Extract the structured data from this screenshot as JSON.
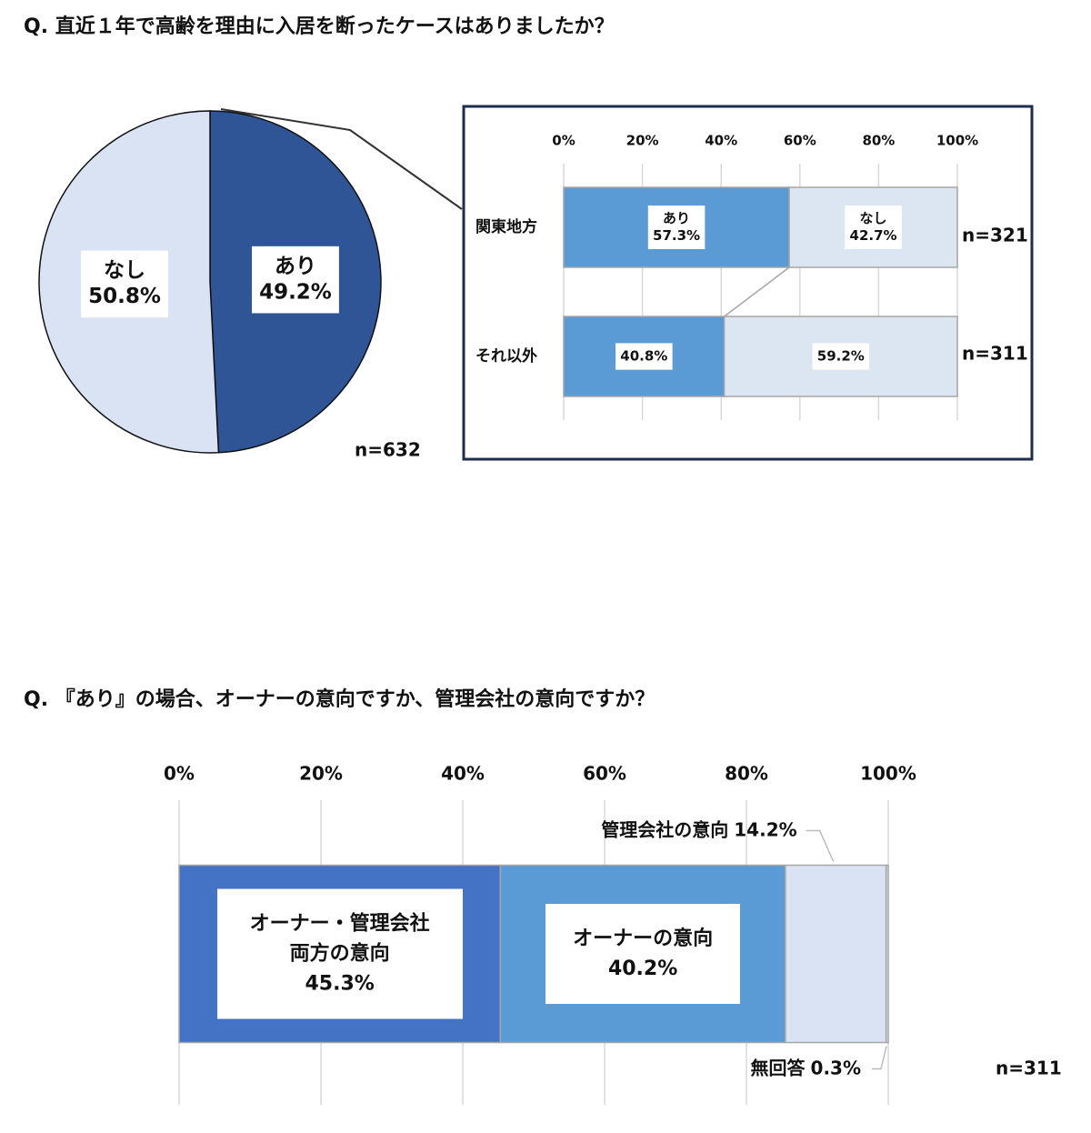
{
  "chart_data": [
    {
      "type": "pie",
      "title": "Q. 直近１年で高齢を理由に入居を断ったケースはありましたか？",
      "categories": [
        "あり",
        "なし"
      ],
      "values": [
        49.2,
        50.8
      ],
      "value_labels": [
        "49.2%",
        "50.8%"
      ],
      "colors": [
        "#2f5597",
        "#dae3f3"
      ],
      "annotation": "n=632"
    },
    {
      "type": "bar",
      "orientation": "horizontal",
      "stacked": true,
      "categories": [
        "関東地方",
        "それ以外"
      ],
      "series": [
        {
          "name": "あり",
          "color": "#5b9bd5",
          "values": [
            57.3,
            40.8
          ],
          "value_labels": [
            "57.3%",
            "40.8%"
          ]
        },
        {
          "name": "なし",
          "color": "#dce6f2",
          "values": [
            42.7,
            59.2
          ],
          "value_labels": [
            "42.7%",
            "59.2%"
          ]
        }
      ],
      "xlim": [
        0,
        100
      ],
      "xticks": [
        {
          "value": 0,
          "label": "0%"
        },
        {
          "value": 20,
          "label": "20%"
        },
        {
          "value": 40,
          "label": "40%"
        },
        {
          "value": 60,
          "label": "60%"
        },
        {
          "value": 80,
          "label": "80%"
        },
        {
          "value": 100,
          "label": "100%"
        }
      ],
      "grid": true,
      "annotations": [
        "n=321",
        "n=311"
      ]
    },
    {
      "type": "bar",
      "orientation": "horizontal",
      "stacked": true,
      "title": "Q. 『あり』の場合、オーナーの意向ですか、管理会社の意向ですか？",
      "categories": [
        null
      ],
      "series": [
        {
          "name": "オーナー・管理会社両方の意向",
          "color": "#4472c4",
          "values": [
            45.3
          ],
          "value_labels": [
            "45.3%"
          ]
        },
        {
          "name": "オーナーの意向",
          "color": "#5b9bd5",
          "values": [
            40.2
          ],
          "value_labels": [
            "40.2%"
          ]
        },
        {
          "name": "管理会社の意向",
          "color": "#dae3f3",
          "values": [
            14.2
          ],
          "value_labels": [
            "14.2%"
          ]
        },
        {
          "name": "無回答",
          "color": "#dae3f3",
          "values": [
            0.3
          ],
          "value_labels": [
            "0.3%"
          ]
        }
      ],
      "xlim": [
        0,
        100
      ],
      "xticks": [
        {
          "value": 0,
          "label": "0%"
        },
        {
          "value": 20,
          "label": "20%"
        },
        {
          "value": 40,
          "label": "40%"
        },
        {
          "value": 60,
          "label": "60%"
        },
        {
          "value": 80,
          "label": "80%"
        },
        {
          "value": 100,
          "label": "100%"
        }
      ],
      "grid": true,
      "annotations": [
        "n=311"
      ]
    }
  ]
}
